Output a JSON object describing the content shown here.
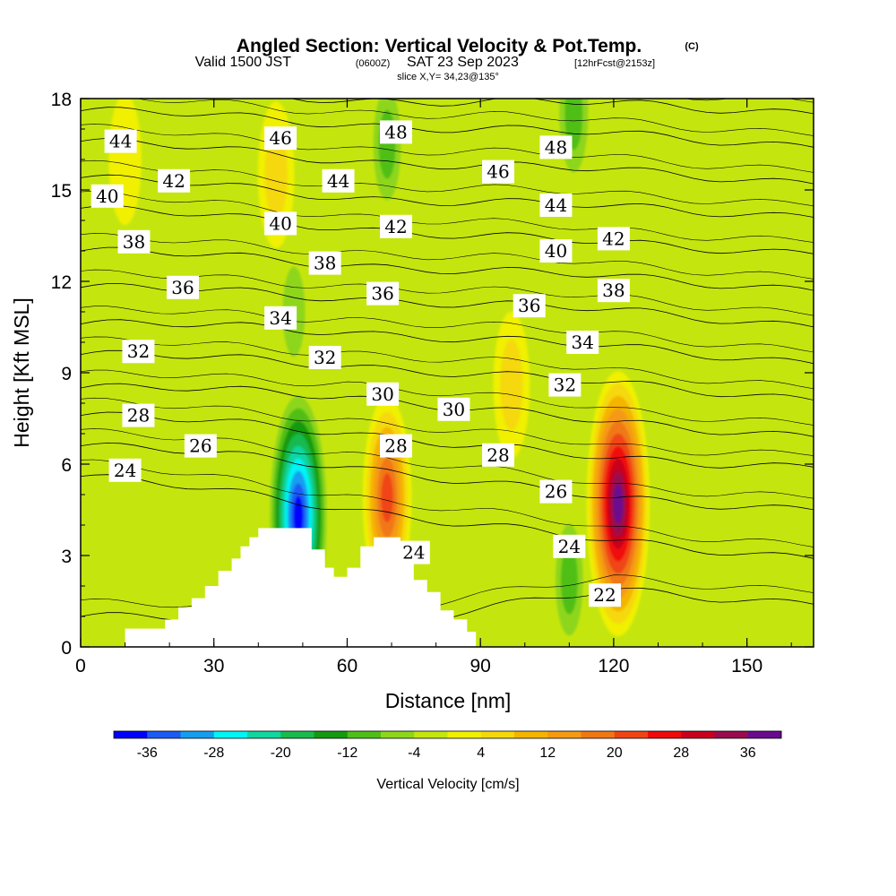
{
  "header": {
    "title": "Angled Section: Vertical Velocity & Pot.Temp.",
    "title_unit": "(C)",
    "valid_prefix": "Valid 1500 JST",
    "valid_utc": "(0600Z)",
    "valid_date": "SAT 23 Sep 2023",
    "forecast": "[12hrFcst@2153z]",
    "slice": "slice X,Y= 34,23@135°"
  },
  "chart_data": {
    "type": "heatmap",
    "xlabel": "Distance [nm]",
    "ylabel": "Height [Kft MSL]",
    "xlim": [
      0,
      165
    ],
    "ylim": [
      0,
      18
    ],
    "x_ticks": [
      "0",
      "30",
      "60",
      "90",
      "120",
      "150"
    ],
    "y_ticks": [
      "0",
      "3",
      "6",
      "9",
      "12",
      "15",
      "18"
    ],
    "x_tick_values": [
      0,
      30,
      60,
      90,
      120,
      150
    ],
    "y_tick_values": [
      0,
      3,
      6,
      9,
      12,
      15,
      18
    ],
    "colorbar": {
      "label": "Vertical Velocity [cm/s]",
      "tick_labels": [
        "-36",
        "-28",
        "-20",
        "-12",
        "-4",
        "4",
        "12",
        "20",
        "28",
        "36"
      ],
      "bin_edges": [
        -40,
        -36,
        -32,
        -28,
        -24,
        -20,
        -16,
        -12,
        -8,
        -4,
        0,
        4,
        8,
        12,
        16,
        20,
        24,
        28,
        32,
        36,
        40
      ],
      "colors": [
        "#0000ff",
        "#1c5cf5",
        "#149ef0",
        "#00f5f5",
        "#10d6a0",
        "#19ba4e",
        "#149a10",
        "#4fbf18",
        "#8ed61a",
        "#c4e60e",
        "#f0f000",
        "#f5d80a",
        "#f5b400",
        "#f59a12",
        "#f07814",
        "#f04414",
        "#f00a0a",
        "#c8001e",
        "#9a0a4e",
        "#6a0a8e"
      ],
      "background_color": "#c4e60e"
    },
    "updrafts": [
      {
        "x": 121,
        "y": 4.7,
        "value": 40
      },
      {
        "x": 69,
        "y": 4.9,
        "value": 24
      },
      {
        "x": 44,
        "y": 15.5,
        "value": 10
      },
      {
        "x": 97,
        "y": 8.6,
        "value": 10
      },
      {
        "x": 10,
        "y": 16.0,
        "value": 6
      }
    ],
    "downdrafts": [
      {
        "x": 49,
        "y": 4.3,
        "value": -40
      },
      {
        "x": 48,
        "y": 11.0,
        "value": -10
      },
      {
        "x": 69,
        "y": 16.5,
        "value": -12
      },
      {
        "x": 110,
        "y": 2.2,
        "value": -12
      },
      {
        "x": 111,
        "y": 17.5,
        "value": -14
      }
    ],
    "terrain": [
      [
        0,
        0
      ],
      [
        10,
        0
      ],
      [
        10,
        0.6
      ],
      [
        19,
        0.6
      ],
      [
        19,
        0.9
      ],
      [
        22,
        0.9
      ],
      [
        22,
        1.3
      ],
      [
        25,
        1.3
      ],
      [
        25,
        1.6
      ],
      [
        28,
        1.6
      ],
      [
        28,
        2.0
      ],
      [
        31,
        2.0
      ],
      [
        31,
        2.5
      ],
      [
        34,
        2.5
      ],
      [
        34,
        2.9
      ],
      [
        36,
        2.9
      ],
      [
        36,
        3.3
      ],
      [
        38,
        3.3
      ],
      [
        38,
        3.6
      ],
      [
        40,
        3.6
      ],
      [
        40,
        3.9
      ],
      [
        52,
        3.9
      ],
      [
        52,
        3.2
      ],
      [
        55,
        3.2
      ],
      [
        55,
        2.6
      ],
      [
        57,
        2.6
      ],
      [
        57,
        2.3
      ],
      [
        60,
        2.3
      ],
      [
        60,
        2.6
      ],
      [
        63,
        2.6
      ],
      [
        63,
        3.3
      ],
      [
        66,
        3.3
      ],
      [
        66,
        3.6
      ],
      [
        72,
        3.6
      ],
      [
        72,
        3.0
      ],
      [
        75,
        3.0
      ],
      [
        75,
        2.2
      ],
      [
        78,
        2.2
      ],
      [
        78,
        1.8
      ],
      [
        81,
        1.8
      ],
      [
        81,
        1.2
      ],
      [
        84,
        1.2
      ],
      [
        84,
        0.9
      ],
      [
        87,
        0.9
      ],
      [
        87,
        0.5
      ],
      [
        89,
        0.5
      ],
      [
        89,
        0
      ],
      [
        165,
        0
      ]
    ],
    "potential_temperature_isentropes": {
      "levels": [
        22,
        24,
        26,
        28,
        30,
        32,
        34,
        36,
        38,
        40,
        42,
        44,
        46,
        48
      ],
      "heights_at_x_0_60_120_165": {
        "22": [
          1.0,
          0.7,
          1.8,
          1.5
        ],
        "24": [
          5.6,
          4.6,
          3.4,
          3.0
        ],
        "26": [
          6.6,
          6.0,
          4.8,
          4.6
        ],
        "28": [
          7.6,
          7.1,
          6.1,
          6.0
        ],
        "30": [
          8.5,
          8.3,
          7.3,
          7.0
        ],
        "32": [
          9.6,
          9.3,
          8.6,
          8.2
        ],
        "34": [
          10.6,
          10.4,
          9.8,
          9.4
        ],
        "36": [
          11.8,
          11.5,
          11.0,
          10.6
        ],
        "38": [
          13.0,
          12.6,
          12.1,
          11.8
        ],
        "40": [
          14.4,
          13.8,
          13.2,
          13.0
        ],
        "42": [
          15.4,
          14.8,
          14.4,
          14.2
        ],
        "44": [
          16.6,
          16.0,
          15.6,
          15.3
        ],
        "46": [
          17.6,
          17.2,
          16.8,
          16.5
        ],
        "48": [
          18.4,
          18.0,
          17.8,
          17.6
        ]
      },
      "labels": [
        {
          "text": "44",
          "x": 9,
          "y": 16.6
        },
        {
          "text": "40",
          "x": 6,
          "y": 14.8
        },
        {
          "text": "42",
          "x": 21,
          "y": 15.3
        },
        {
          "text": "38",
          "x": 12,
          "y": 13.3
        },
        {
          "text": "36",
          "x": 23,
          "y": 11.8
        },
        {
          "text": "32",
          "x": 13,
          "y": 9.7
        },
        {
          "text": "28",
          "x": 13,
          "y": 7.6
        },
        {
          "text": "26",
          "x": 27,
          "y": 6.6
        },
        {
          "text": "24",
          "x": 10,
          "y": 5.8
        },
        {
          "text": "46",
          "x": 45,
          "y": 16.7
        },
        {
          "text": "44",
          "x": 58,
          "y": 15.3
        },
        {
          "text": "40",
          "x": 45,
          "y": 13.9
        },
        {
          "text": "38",
          "x": 55,
          "y": 12.6
        },
        {
          "text": "34",
          "x": 45,
          "y": 10.8
        },
        {
          "text": "32",
          "x": 55,
          "y": 9.5
        },
        {
          "text": "48",
          "x": 71,
          "y": 16.9
        },
        {
          "text": "42",
          "x": 71,
          "y": 13.8
        },
        {
          "text": "36",
          "x": 68,
          "y": 11.6
        },
        {
          "text": "30",
          "x": 68,
          "y": 8.3
        },
        {
          "text": "28",
          "x": 71,
          "y": 6.6
        },
        {
          "text": "24",
          "x": 75,
          "y": 3.1
        },
        {
          "text": "30",
          "x": 84,
          "y": 7.8
        },
        {
          "text": "28",
          "x": 94,
          "y": 6.3
        },
        {
          "text": "46",
          "x": 94,
          "y": 15.6
        },
        {
          "text": "48",
          "x": 107,
          "y": 16.4
        },
        {
          "text": "44",
          "x": 107,
          "y": 14.5
        },
        {
          "text": "40",
          "x": 107,
          "y": 13.0
        },
        {
          "text": "36",
          "x": 101,
          "y": 11.2
        },
        {
          "text": "34",
          "x": 113,
          "y": 10.0
        },
        {
          "text": "32",
          "x": 109,
          "y": 8.6
        },
        {
          "text": "26",
          "x": 107,
          "y": 5.1
        },
        {
          "text": "24",
          "x": 110,
          "y": 3.3
        },
        {
          "text": "22",
          "x": 118,
          "y": 1.7
        },
        {
          "text": "42",
          "x": 120,
          "y": 13.4
        },
        {
          "text": "38",
          "x": 120,
          "y": 11.7
        }
      ]
    }
  }
}
